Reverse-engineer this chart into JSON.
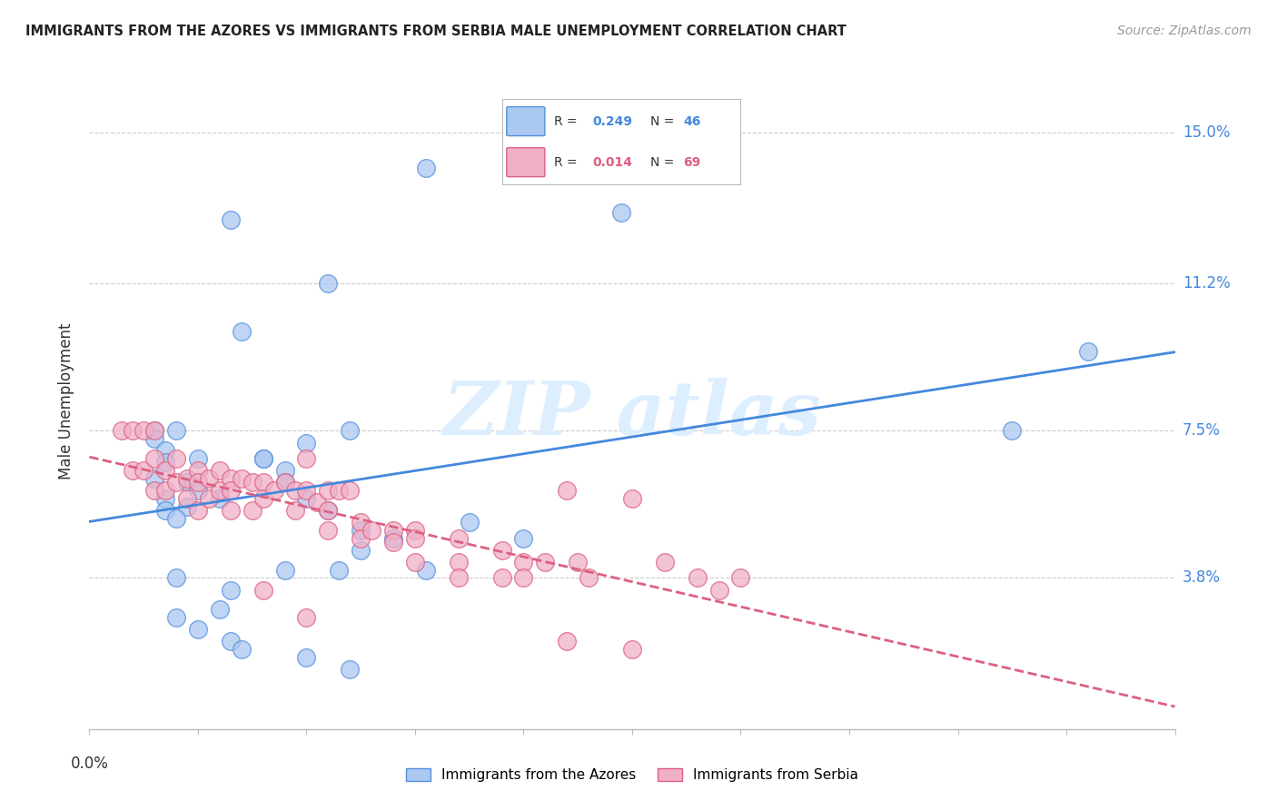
{
  "title": "IMMIGRANTS FROM THE AZORES VS IMMIGRANTS FROM SERBIA MALE UNEMPLOYMENT CORRELATION CHART",
  "source": "Source: ZipAtlas.com",
  "ylabel": "Male Unemployment",
  "y_ticks": [
    0.038,
    0.075,
    0.112,
    0.15
  ],
  "y_tick_labels": [
    "3.8%",
    "7.5%",
    "11.2%",
    "15.0%"
  ],
  "x_range": [
    0.0,
    0.1
  ],
  "y_range": [
    0.0,
    0.165
  ],
  "azores_R": 0.249,
  "azores_N": 46,
  "serbia_R": 0.014,
  "serbia_N": 69,
  "azores_color": "#aac8f0",
  "serbia_color": "#f0b0c8",
  "azores_edge_color": "#5590dd",
  "serbia_edge_color": "#dd6080",
  "azores_line_color": "#4488dd",
  "serbia_line_color": "#dd6080",
  "watermark_color": "#ddeeff",
  "azores_x": [
    0.031,
    0.013,
    0.022,
    0.049,
    0.014,
    0.006,
    0.006,
    0.007,
    0.006,
    0.007,
    0.009,
    0.01,
    0.007,
    0.007,
    0.009,
    0.008,
    0.008,
    0.01,
    0.016,
    0.012,
    0.024,
    0.02,
    0.016,
    0.018,
    0.018,
    0.02,
    0.022,
    0.035,
    0.025,
    0.028,
    0.04,
    0.025,
    0.018,
    0.008,
    0.013,
    0.012,
    0.031,
    0.023,
    0.085,
    0.092,
    0.008,
    0.01,
    0.013,
    0.014,
    0.02,
    0.024
  ],
  "azores_y": [
    0.141,
    0.128,
    0.112,
    0.13,
    0.1,
    0.075,
    0.073,
    0.07,
    0.063,
    0.067,
    0.062,
    0.06,
    0.058,
    0.055,
    0.056,
    0.053,
    0.075,
    0.068,
    0.068,
    0.058,
    0.075,
    0.072,
    0.068,
    0.065,
    0.062,
    0.058,
    0.055,
    0.052,
    0.05,
    0.048,
    0.048,
    0.045,
    0.04,
    0.038,
    0.035,
    0.03,
    0.04,
    0.04,
    0.075,
    0.095,
    0.028,
    0.025,
    0.022,
    0.02,
    0.018,
    0.015
  ],
  "serbia_x": [
    0.003,
    0.004,
    0.004,
    0.005,
    0.005,
    0.006,
    0.006,
    0.006,
    0.007,
    0.007,
    0.008,
    0.008,
    0.009,
    0.009,
    0.01,
    0.01,
    0.01,
    0.011,
    0.011,
    0.012,
    0.012,
    0.013,
    0.013,
    0.013,
    0.014,
    0.015,
    0.015,
    0.016,
    0.016,
    0.017,
    0.018,
    0.019,
    0.019,
    0.02,
    0.02,
    0.021,
    0.022,
    0.022,
    0.022,
    0.023,
    0.024,
    0.025,
    0.025,
    0.026,
    0.028,
    0.028,
    0.03,
    0.03,
    0.03,
    0.034,
    0.034,
    0.034,
    0.038,
    0.038,
    0.04,
    0.04,
    0.042,
    0.044,
    0.045,
    0.046,
    0.05,
    0.05,
    0.053,
    0.056,
    0.058,
    0.06,
    0.016,
    0.02,
    0.044
  ],
  "serbia_y": [
    0.075,
    0.075,
    0.065,
    0.075,
    0.065,
    0.075,
    0.068,
    0.06,
    0.065,
    0.06,
    0.068,
    0.062,
    0.063,
    0.058,
    0.065,
    0.062,
    0.055,
    0.063,
    0.058,
    0.065,
    0.06,
    0.063,
    0.06,
    0.055,
    0.063,
    0.062,
    0.055,
    0.062,
    0.058,
    0.06,
    0.062,
    0.06,
    0.055,
    0.068,
    0.06,
    0.057,
    0.06,
    0.055,
    0.05,
    0.06,
    0.06,
    0.052,
    0.048,
    0.05,
    0.05,
    0.047,
    0.05,
    0.048,
    0.042,
    0.048,
    0.042,
    0.038,
    0.045,
    0.038,
    0.042,
    0.038,
    0.042,
    0.022,
    0.042,
    0.038,
    0.058,
    0.02,
    0.042,
    0.038,
    0.035,
    0.038,
    0.035,
    0.028,
    0.06
  ]
}
